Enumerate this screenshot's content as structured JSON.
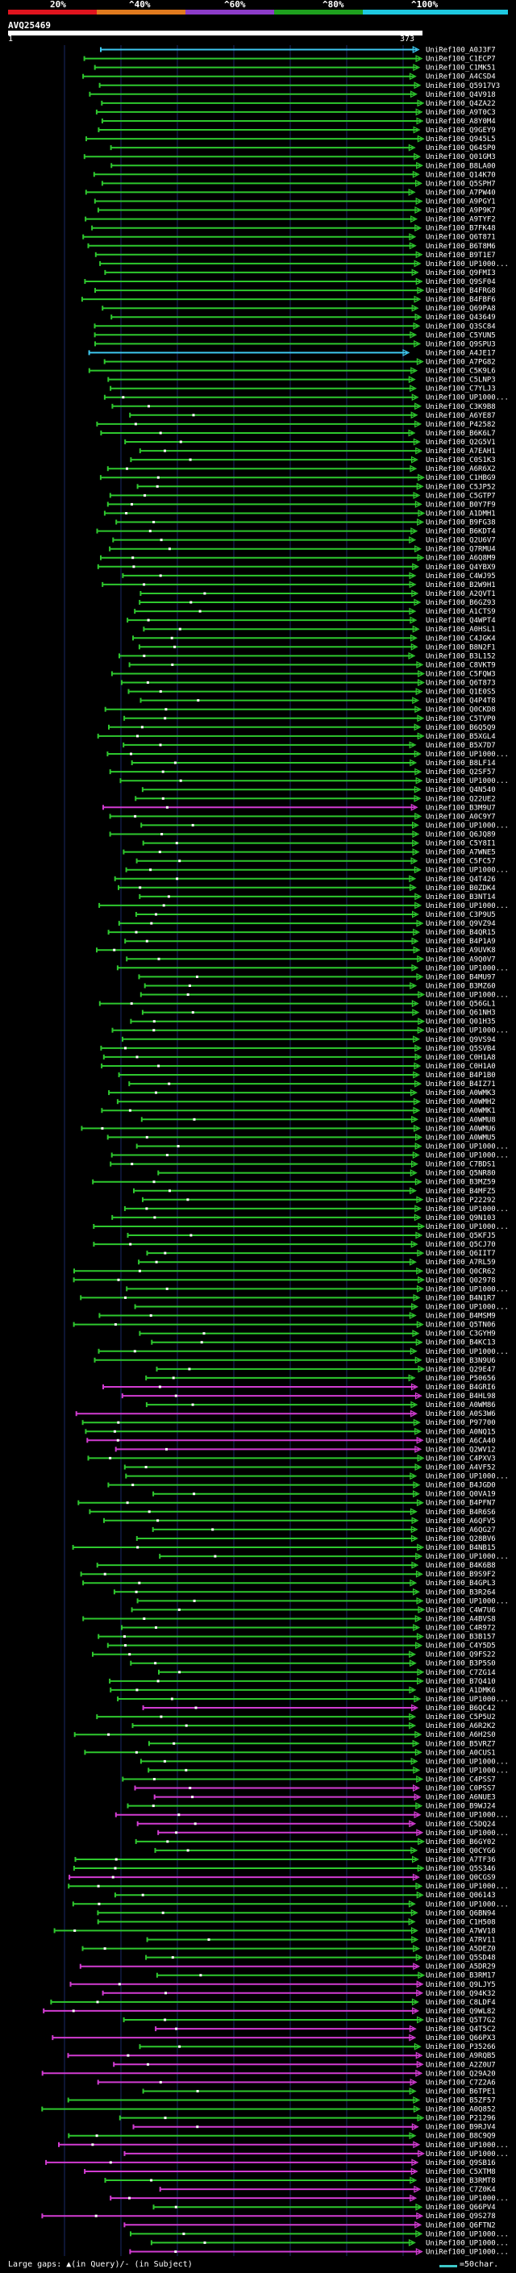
{
  "scale": {
    "labels": [
      "20%",
      "^40%",
      "^60%",
      "^80%",
      "^100%"
    ],
    "colors": [
      "#e0141e",
      "#e07a1e",
      "#8c3cc8",
      "#1ea01e",
      "#1ec8e0"
    ]
  },
  "query": {
    "id": "AVQ25469",
    "start": "1",
    "end": "373"
  },
  "legend": {
    "large_gaps": "Large gaps: ▲(in Query)/- (in Subject)",
    "scale_text": "=50char."
  },
  "colors": {
    "green": "#2ec82e",
    "magenta": "#d23cd2",
    "cyan": "#3ec8f0",
    "gridline": "#1a2a66"
  },
  "hits": [
    "UniRef100_A0J3F7",
    "UniRef100_C1ECP7",
    "UniRef100_C1MK51",
    "UniRef100_A4CSD4",
    "UniRef100_Q5917V3",
    "UniRef100_Q4V918",
    "UniRef100_Q4ZA22",
    "UniRef100_A9T0C3",
    "UniRef100_A8Y0M4",
    "UniRef100_Q9GEY9",
    "UniRef100_Q945L5",
    "UniRef100_Q64SP0",
    "UniRef100_Q01GM3",
    "UniRef100_B8LA00",
    "UniRef100_Q14K70",
    "UniRef100_Q5SPH7",
    "UniRef100_A7PW40",
    "UniRef100_A9PGY1",
    "UniRef100_A9P9K7",
    "UniRef100_A9TYF2",
    "UniRef100_B7FK48",
    "UniRef100_Q6T871",
    "UniRef100_B6T8M6",
    "UniRef100_B9T1E7",
    "UniRef100_UP1000...",
    "UniRef100_Q9FMI3",
    "UniRef100_Q9SF04",
    "UniRef100_B4FRG8",
    "UniRef100_B4FBF6",
    "UniRef100_Q69PA8",
    "UniRef100_Q43649",
    "UniRef100_Q3SC84",
    "UniRef100_C5YUN5",
    "UniRef100_Q9SPU3",
    "UniRef100_A4JE17",
    "UniRef100_A7PG82",
    "UniRef100_C5K9L6",
    "UniRef100_C5LNP3",
    "UniRef100_C7YLJ3",
    "UniRef100_UP1000...",
    "UniRef100_C3K9B8",
    "UniRef100_A6YE87",
    "UniRef100_P42582",
    "UniRef100_B6K6L7",
    "UniRef100_Q2G5V1",
    "UniRef100_A7EAH1",
    "UniRef100_C0S1K3",
    "UniRef100_A6R6X2",
    "UniRef100_C1HBG9",
    "UniRef100_C5JP52",
    "UniRef100_C5GTP7",
    "UniRef100_B0Y7F9",
    "UniRef100_A1DMH1",
    "UniRef100_B9FG38",
    "UniRef100_B6KDT4",
    "UniRef100_Q2U6V7",
    "UniRef100_Q7RMU4",
    "UniRef100_A6Q8M9",
    "UniRef100_Q4YBX9",
    "UniRef100_C4WJ95",
    "UniRef100_B2W9H1",
    "UniRef100_A2QVT1",
    "UniRef100_B6GZ93",
    "UniRef100_A1CTS9",
    "UniRef100_Q4WPT4",
    "UniRef100_A0HSL1",
    "UniRef100_C4JGK4",
    "UniRef100_B8N2F1",
    "UniRef100_B3L152",
    "UniRef100_C8VKT9",
    "UniRef100_C5FQW3",
    "UniRef100_Q6T873",
    "UniRef100_Q1E0S5",
    "UniRef100_Q4P4T8",
    "UniRef100_Q0CKD8",
    "UniRef100_C5TVP0",
    "UniRef100_B6Q5Q9",
    "UniRef100_B5XGL4",
    "UniRef100_B5X7D7",
    "UniRef100_UP1000...",
    "UniRef100_B8LF14",
    "UniRef100_Q2SF57",
    "UniRef100_UP1000...",
    "UniRef100_Q4N540",
    "UniRef100_Q22UE2",
    "UniRef100_B3M9U7",
    "UniRef100_A0C9Y7",
    "UniRef100_UP1000...",
    "UniRef100_Q6JQ89",
    "UniRef100_C5Y8I1",
    "UniRef100_A7WNE5",
    "UniRef100_C5FC57",
    "UniRef100_UP1000...",
    "UniRef100_Q4T426",
    "UniRef100_B0ZDK4",
    "UniRef100_B3NT14",
    "UniRef100_UP1000...",
    "UniRef100_C3P9U5",
    "UniRef100_Q9VZ94",
    "UniRef100_B4QR15",
    "UniRef100_B4P1A9",
    "UniRef100_A9UVK8",
    "UniRef100_A9Q0V7",
    "UniRef100_UP1000...",
    "UniRef100_B4MU97",
    "UniRef100_B3MZ60",
    "UniRef100_UP1000...",
    "UniRef100_Q56GL1",
    "UniRef100_Q61NH3",
    "UniRef100_Q01H35",
    "UniRef100_UP1000...",
    "UniRef100_Q9VS94",
    "UniRef100_Q5SVB4",
    "UniRef100_C0H1A8",
    "UniRef100_C0H1A0",
    "UniRef100_B4P1B0",
    "UniRef100_B4IZ71",
    "UniRef100_A0WMK3",
    "UniRef100_A0WMH2",
    "UniRef100_A0WMK1",
    "UniRef100_A0WMU8",
    "UniRef100_A0WMU6",
    "UniRef100_A0WMU5",
    "UniRef100_UP1000...",
    "UniRef100_UP1000...",
    "UniRef100_C7BDS1",
    "UniRef100_Q5NR80",
    "UniRef100_B3MZ59",
    "UniRef100_B4MFZ5",
    "UniRef100_P22292",
    "UniRef100_UP1000...",
    "UniRef100_Q9N103",
    "UniRef100_UP1000...",
    "UniRef100_Q5KFJ5",
    "UniRef100_Q5CJ70",
    "UniRef100_Q6IIT7",
    "UniRef100_A7RL59",
    "UniRef100_Q0CR62",
    "UniRef100_Q02978",
    "UniRef100_UP1000...",
    "UniRef100_B4N1R7",
    "UniRef100_UP1000...",
    "UniRef100_B4MSM9",
    "UniRef100_Q5TN06",
    "UniRef100_C3GYH9",
    "UniRef100_B4KC13",
    "UniRef100_UP1000...",
    "UniRef100_B3N9U6",
    "UniRef100_Q29E47",
    "UniRef100_P50656",
    "UniRef100_B4GRI6",
    "UniRef100_B4HL98",
    "UniRef100_A0WM86",
    "UniRef100_A0S3W6",
    "UniRef100_P97700",
    "UniRef100_A0NQ15",
    "UniRef100_A6CA40",
    "UniRef100_Q2WV12",
    "UniRef100_C4PXV3",
    "UniRef100_A4VF52",
    "UniRef100_UP1000...",
    "UniRef100_B4JGD0",
    "UniRef100_Q0VA19",
    "UniRef100_B4PFN7",
    "UniRef100_B4R6S6",
    "UniRef100_A6QFV5",
    "UniRef100_A6QG27",
    "UniRef100_Q28BV6",
    "UniRef100_B4NB15",
    "UniRef100_UP1000...",
    "UniRef100_B4K6B8",
    "UniRef100_B9S9F2",
    "UniRef100_B4GPL3",
    "UniRef100_B3R264",
    "UniRef100_UP1000...",
    "UniRef100_C4W7U6",
    "UniRef100_A4BVS8",
    "UniRef100_C4R972",
    "UniRef100_B3B157",
    "UniRef100_C4Y5D5",
    "UniRef100_Q9FS22",
    "UniRef100_B3P5S0",
    "UniRef100_C7ZG14",
    "UniRef100_B7Q410",
    "UniRef100_A1DMK6",
    "UniRef100_UP1000...",
    "UniRef100_B6QC42",
    "UniRef100_C5P5U2",
    "UniRef100_A6R2K2",
    "UniRef100_A6H2S0",
    "UniRef100_B5VRZ7",
    "UniRef100_A0CUS1",
    "UniRef100_UP1000...",
    "UniRef100_UP1000...",
    "UniRef100_C4PSS7",
    "UniRef100_C0PSS7",
    "UniRef100_A6NUE3",
    "UniRef100_B9WJ24",
    "UniRef100_UP1000...",
    "UniRef100_C5DQ24",
    "UniRef100_UP1000...",
    "UniRef100_B6GY02",
    "UniRef100_Q0CYG6",
    "UniRef100_A7TF36",
    "UniRef100_Q5S346",
    "UniRef100_Q0CGS9",
    "UniRef100_UP1000...",
    "UniRef100_Q06143",
    "UniRef100_UP1000...",
    "UniRef100_Q6BN94",
    "UniRef100_C1H508",
    "UniRef100_A7WV18",
    "UniRef100_A7RV11",
    "UniRef100_A5DEZ0",
    "UniRef100_Q5SD48",
    "UniRef100_A5DR29",
    "UniRef100_B3RM17",
    "UniRef100_Q9LJY5",
    "UniRef100_Q94K32",
    "UniRef100_C8LDF4",
    "UniRef100_Q9WL82",
    "UniRef100_Q5T7G2",
    "UniRef100_Q4T5C2",
    "UniRef100_Q66PX3",
    "UniRef100_P35266",
    "UniRef100_A9RQB5",
    "UniRef100_A2Z0U7",
    "UniRef100_Q29A20",
    "UniRef100_C7Z2A6",
    "UniRef100_B6TPE1",
    "UniRef100_B5ZF57",
    "UniRef100_A0Q852",
    "UniRef100_P21296",
    "UniRef100_B9RJV4",
    "UniRef100_B8C9Q9",
    "UniRef100_UP1000...",
    "UniRef100_UP1000...",
    "UniRef100_Q9SB16",
    "UniRef100_C5XTM8",
    "UniRef100_B3RMT8",
    "UniRef100_C7Z0K4",
    "UniRef100_UP1000...",
    "UniRef100_Q66PV4",
    "UniRef100_Q9S278",
    "UniRef100_Q6FTN2",
    "UniRef100_UP1000...",
    "UniRef100_UP1000...",
    "UniRef100_UP1000..."
  ]
}
